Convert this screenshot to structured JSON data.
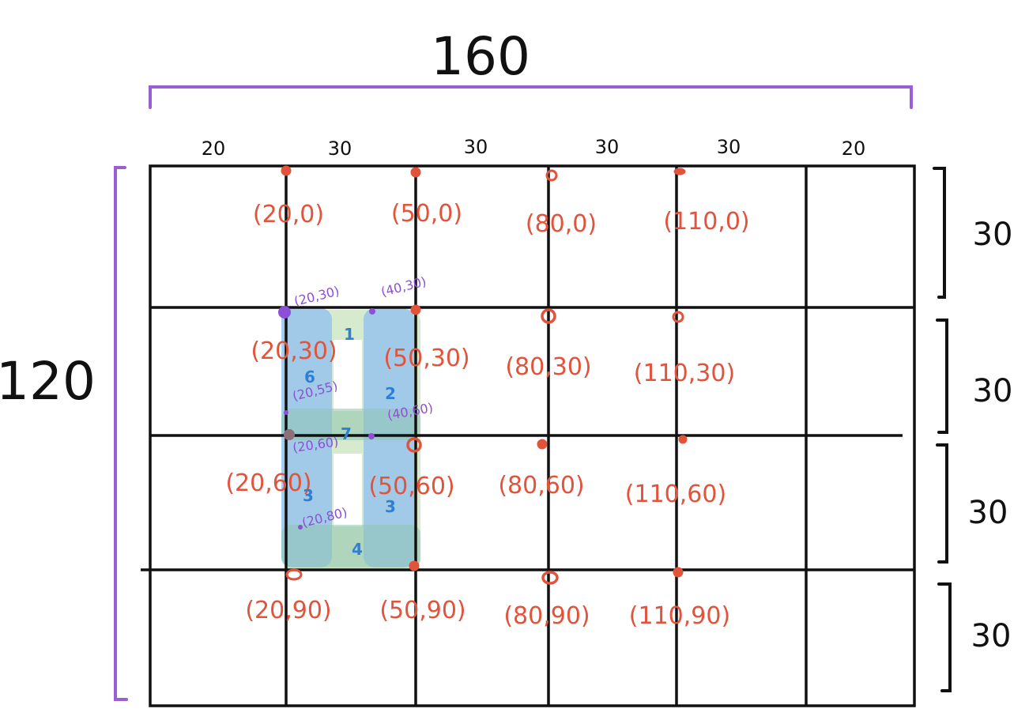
{
  "colors": {
    "grid": "#111111",
    "bracket": "#9a5fd6",
    "red_points": "#e2533c",
    "purple_points": "#8d4fd6",
    "blue_fill": "#8fbff0",
    "green_fill": "#cfe6c4",
    "number_blue": "#2f7fd4"
  },
  "labels": {
    "total_width": "160",
    "total_height": "120",
    "column_widths": [
      "20",
      "30",
      "30",
      "30",
      "30",
      "20"
    ],
    "row_heights": [
      "30",
      "30",
      "30",
      "30"
    ]
  },
  "red_coordinates": [
    "(20,0)",
    "(50,0)",
    "(80,0)",
    "(110,0)",
    "(20,30)",
    "(50,30)",
    "(80,30)",
    "(110,30)",
    "(20,60)",
    "(50,60)",
    "(80,60)",
    "(110,60)",
    "(20,90)",
    "(50,90)",
    "(80,90)",
    "(110,90)"
  ],
  "purple_coordinates": [
    "(20,30)",
    "(40,30)",
    "(20,55)",
    "(40,60)",
    "(20,60)",
    "(20,80)"
  ],
  "region_numbers": [
    "1",
    "2",
    "3",
    "4",
    "6",
    "7",
    "3"
  ]
}
